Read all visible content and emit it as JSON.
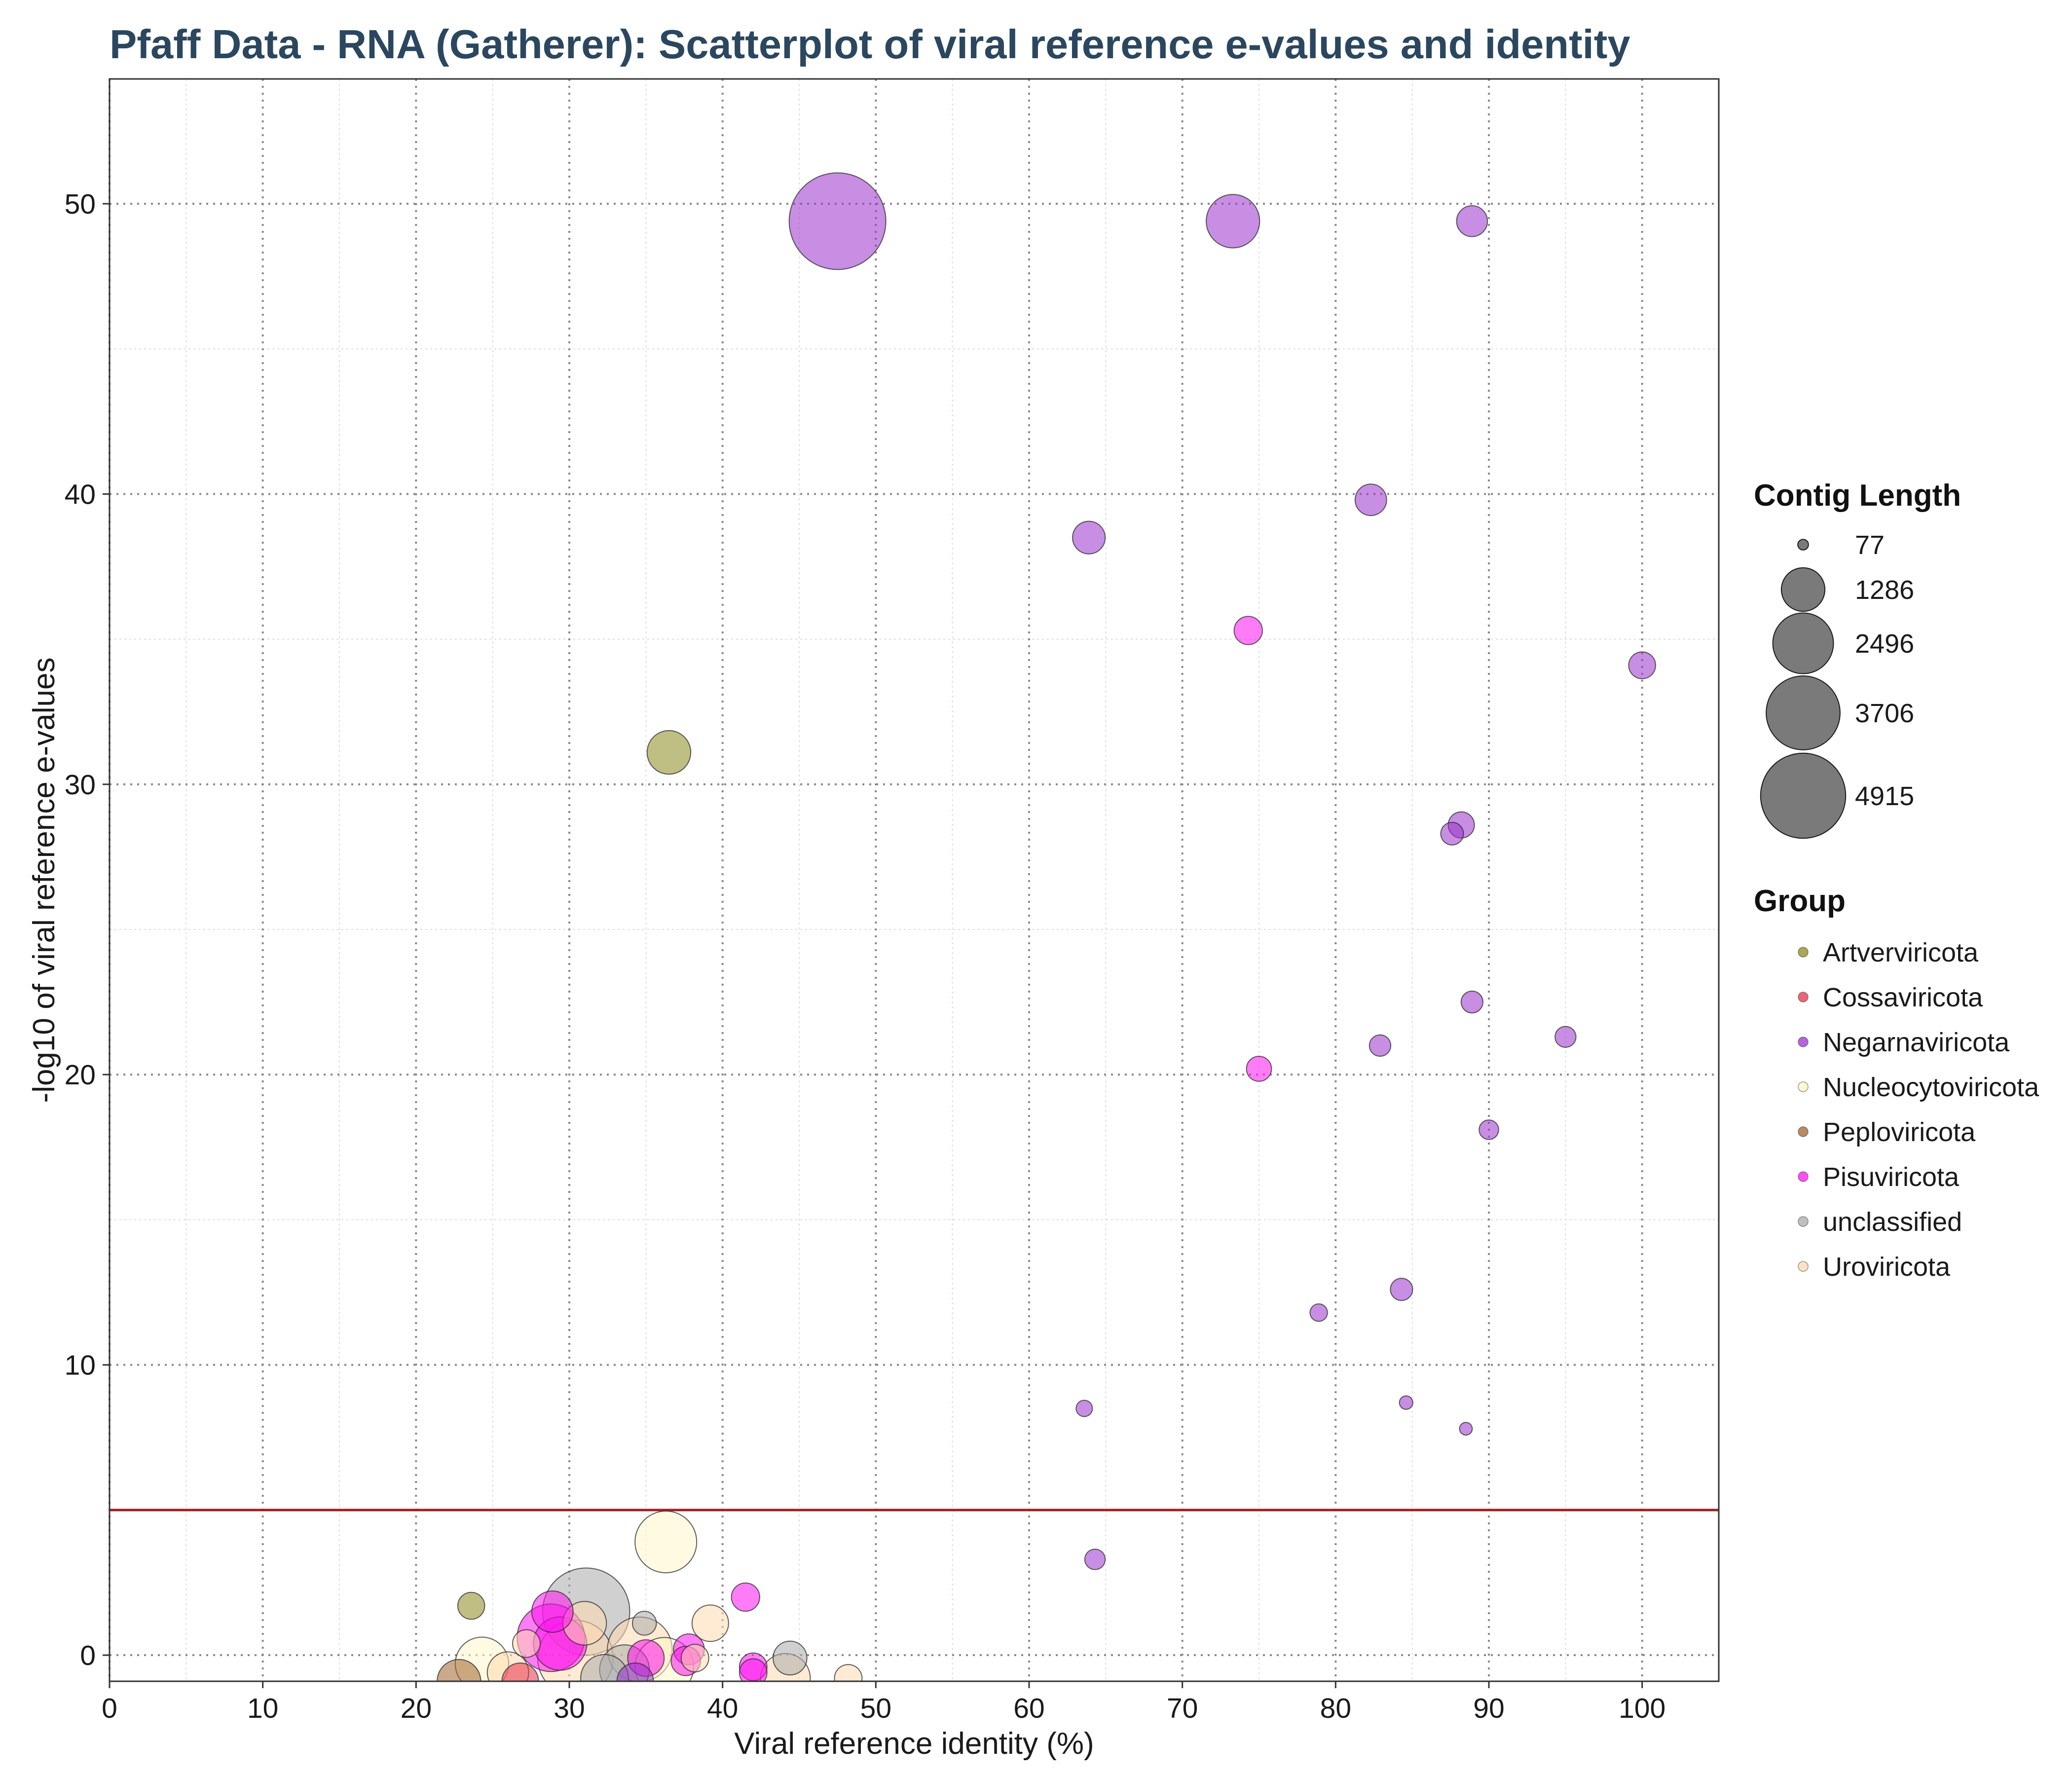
{
  "chart_data": {
    "type": "scatter",
    "title": "Pfaff Data - RNA (Gatherer): Scatterplot of viral reference e-values and identity",
    "xlabel": "Viral reference identity (%)",
    "ylabel": "-log10 of viral reference e-values",
    "xlim": [
      0,
      105
    ],
    "ylim": [
      -0.9,
      54.3
    ],
    "x_ticks": [
      0,
      10,
      20,
      30,
      40,
      50,
      60,
      70,
      80,
      90,
      100
    ],
    "y_ticks": [
      0,
      10,
      20,
      30,
      40,
      50
    ],
    "grid": true,
    "threshold_line": {
      "y": 5,
      "color": "#a11d23"
    },
    "legend_position": "right",
    "size_legend": {
      "title": "Contig Length",
      "values": [
        77,
        1286,
        2496,
        3706,
        4915
      ]
    },
    "color_legend": {
      "title": "Group",
      "groups": [
        {
          "name": "Artverviricota",
          "color": "#8b8b1e"
        },
        {
          "name": "Cossaviricota",
          "color": "#e8304a"
        },
        {
          "name": "Negarnaviricota",
          "color": "#9932cc"
        },
        {
          "name": "Nucleocytoviricota",
          "color": "#fff5c8"
        },
        {
          "name": "Peploviricota",
          "color": "#a0622d"
        },
        {
          "name": "Pisuviricota",
          "color": "#ff10f0"
        },
        {
          "name": "unclassified",
          "color": "#a9a9a9"
        },
        {
          "name": "Uroviricota",
          "color": "#ffd8b0"
        }
      ]
    },
    "points": [
      {
        "group": "Negarnaviricota",
        "x": 47.5,
        "y": 49.4,
        "length": 4915
      },
      {
        "group": "Negarnaviricota",
        "x": 73.3,
        "y": 49.4,
        "length": 1500
      },
      {
        "group": "Negarnaviricota",
        "x": 88.9,
        "y": 49.4,
        "length": 500
      },
      {
        "group": "Negarnaviricota",
        "x": 82.3,
        "y": 39.8,
        "length": 520
      },
      {
        "group": "Negarnaviricota",
        "x": 63.9,
        "y": 38.5,
        "length": 560
      },
      {
        "group": "Pisuviricota",
        "x": 74.3,
        "y": 35.3,
        "length": 420
      },
      {
        "group": "Negarnaviricota",
        "x": 100,
        "y": 34.1,
        "length": 380
      },
      {
        "group": "Artverviricota",
        "x": 36.5,
        "y": 31.1,
        "length": 1000
      },
      {
        "group": "Negarnaviricota",
        "x": 88.2,
        "y": 28.6,
        "length": 360
      },
      {
        "group": "Negarnaviricota",
        "x": 87.6,
        "y": 28.3,
        "length": 270
      },
      {
        "group": "Negarnaviricota",
        "x": 88.9,
        "y": 22.5,
        "length": 250
      },
      {
        "group": "Negarnaviricota",
        "x": 95.0,
        "y": 21.3,
        "length": 230
      },
      {
        "group": "Negarnaviricota",
        "x": 82.9,
        "y": 21.0,
        "length": 240
      },
      {
        "group": "Pisuviricota",
        "x": 75.0,
        "y": 20.2,
        "length": 330
      },
      {
        "group": "Negarnaviricota",
        "x": 90.0,
        "y": 18.1,
        "length": 200
      },
      {
        "group": "Negarnaviricota",
        "x": 84.3,
        "y": 12.6,
        "length": 260
      },
      {
        "group": "Negarnaviricota",
        "x": 78.9,
        "y": 11.8,
        "length": 160
      },
      {
        "group": "Negarnaviricota",
        "x": 63.6,
        "y": 8.5,
        "length": 140
      },
      {
        "group": "Negarnaviricota",
        "x": 84.6,
        "y": 8.7,
        "length": 95
      },
      {
        "group": "Negarnaviricota",
        "x": 88.5,
        "y": 7.8,
        "length": 85
      },
      {
        "group": "Nucleocytoviricota",
        "x": 36.3,
        "y": 3.9,
        "length": 2000
      },
      {
        "group": "Negarnaviricota",
        "x": 64.3,
        "y": 3.3,
        "length": 220
      },
      {
        "group": "Pisuviricota",
        "x": 41.5,
        "y": 2.0,
        "length": 420
      },
      {
        "group": "Artverviricota",
        "x": 23.6,
        "y": 1.7,
        "length": 380
      },
      {
        "group": "unclassified",
        "x": 31.1,
        "y": 1.5,
        "length": 4000
      },
      {
        "group": "Pisuviricota",
        "x": 28.9,
        "y": 1.5,
        "length": 900
      },
      {
        "group": "unclassified",
        "x": 34.9,
        "y": 1.1,
        "length": 300
      },
      {
        "group": "Uroviricota",
        "x": 31.0,
        "y": 1.1,
        "length": 1000
      },
      {
        "group": "Uroviricota",
        "x": 39.2,
        "y": 1.1,
        "length": 700
      },
      {
        "group": "Pisuviricota",
        "x": 28.8,
        "y": 0.6,
        "length": 2400
      },
      {
        "group": "Pisuviricota",
        "x": 29.4,
        "y": 0.4,
        "length": 1500
      },
      {
        "group": "Uroviricota",
        "x": 27.2,
        "y": 0.4,
        "length": 400
      },
      {
        "group": "Uroviricota",
        "x": 34.6,
        "y": 0.2,
        "length": 2200
      },
      {
        "group": "Uroviricota",
        "x": 30.4,
        "y": -0.1,
        "length": 3000
      },
      {
        "group": "Pisuviricota",
        "x": 37.8,
        "y": 0.2,
        "length": 500
      },
      {
        "group": "Uroviricota",
        "x": 38.2,
        "y": -0.1,
        "length": 400
      },
      {
        "group": "Pisuviricota",
        "x": 35.0,
        "y": -0.1,
        "length": 700
      },
      {
        "group": "Pisuviricota",
        "x": 37.6,
        "y": -0.2,
        "length": 450
      },
      {
        "group": "unclassified",
        "x": 44.4,
        "y": -0.1,
        "length": 600
      },
      {
        "group": "Nucleocytoviricota",
        "x": 24.3,
        "y": -0.3,
        "length": 1500
      },
      {
        "group": "Nucleocytoviricota",
        "x": 36.2,
        "y": -0.4,
        "length": 1800
      },
      {
        "group": "unclassified",
        "x": 33.6,
        "y": -0.5,
        "length": 1300
      },
      {
        "group": "Pisuviricota",
        "x": 42.0,
        "y": -0.4,
        "length": 400
      },
      {
        "group": "Pisuviricota",
        "x": 42.0,
        "y": -0.6,
        "length": 400
      },
      {
        "group": "Uroviricota",
        "x": 26.0,
        "y": -0.6,
        "length": 900
      },
      {
        "group": "Uroviricota",
        "x": 44.1,
        "y": -0.8,
        "length": 1300
      },
      {
        "group": "Uroviricota",
        "x": 48.2,
        "y": -0.8,
        "length": 400
      },
      {
        "group": "unclassified",
        "x": 32.3,
        "y": -0.8,
        "length": 1200
      },
      {
        "group": "Peploviricota",
        "x": 22.8,
        "y": -0.9,
        "length": 1000
      },
      {
        "group": "Cossaviricota",
        "x": 26.8,
        "y": -0.9,
        "length": 700
      },
      {
        "group": "Negarnaviricota",
        "x": 34.3,
        "y": -0.9,
        "length": 700
      }
    ]
  }
}
